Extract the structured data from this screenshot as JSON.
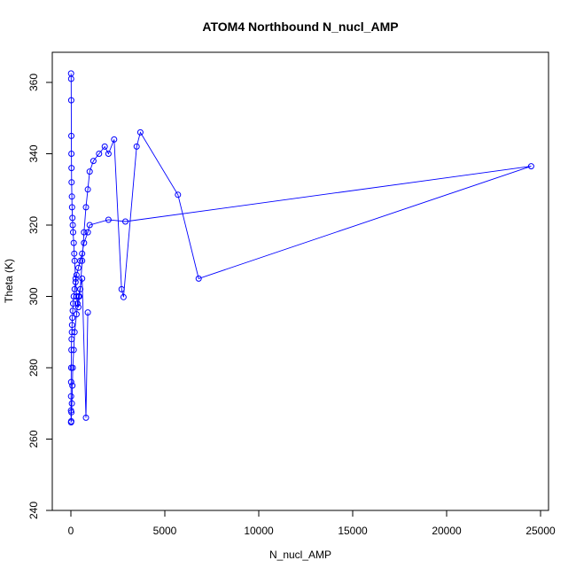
{
  "chart_data": {
    "type": "line",
    "title": "ATOM4 Northbound N_nucl_AMP",
    "xlabel": "N_nucl_AMP",
    "ylabel": "Theta (K)",
    "xlim": [
      0,
      25000
    ],
    "ylim": [
      240,
      360
    ],
    "xticks": [
      0,
      5000,
      10000,
      15000,
      20000,
      25000
    ],
    "yticks": [
      240,
      260,
      280,
      300,
      320,
      340,
      360
    ],
    "grid": false,
    "legend": "none",
    "color": "#0000ff",
    "marker": "open-circle",
    "series": [
      {
        "x": [
          10,
          15,
          20,
          25,
          30,
          35,
          40,
          50,
          60,
          80,
          100,
          120,
          150,
          180,
          200,
          250,
          300,
          350,
          400,
          450,
          500,
          600,
          700,
          800,
          900,
          1000,
          1200,
          1500,
          1800,
          2000,
          2300,
          2700,
          2800,
          3500,
          3700,
          5700,
          6800,
          24500,
          2900,
          2000,
          1000,
          900,
          700,
          600,
          500,
          400,
          300,
          250,
          200,
          150,
          120,
          100,
          80,
          60,
          50,
          40,
          30,
          20,
          15,
          10,
          5,
          10,
          20,
          30,
          50,
          80,
          100,
          150,
          200,
          300,
          400,
          600,
          800,
          900
        ],
        "y": [
          362.5,
          361,
          355,
          345,
          340,
          336,
          332,
          328,
          325,
          322,
          320,
          318,
          315,
          312,
          310,
          305,
          300,
          298,
          297,
          300,
          302,
          310,
          318,
          325,
          330,
          335,
          338,
          340,
          342,
          340,
          344,
          302,
          299.8,
          342,
          346,
          328.5,
          305,
          336.5,
          321,
          321.5,
          320,
          318,
          315,
          312,
          310,
          308,
          306,
          304,
          302,
          300,
          298,
          296,
          294,
          292,
          290,
          288,
          285,
          280,
          276,
          272,
          268,
          264.7,
          265,
          267.5,
          270,
          275,
          280,
          285,
          290,
          295,
          300,
          305,
          266,
          295.5
        ]
      }
    ]
  }
}
